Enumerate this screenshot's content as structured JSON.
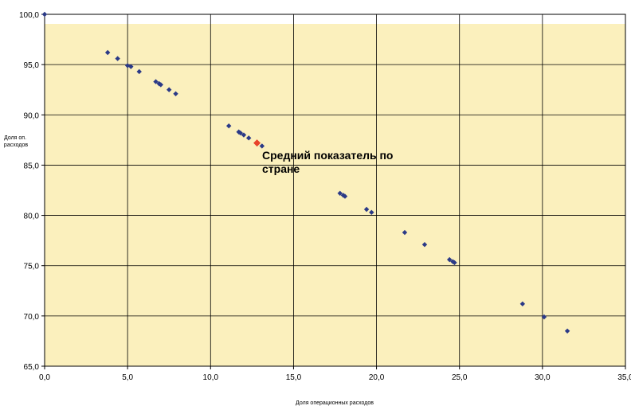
{
  "chart_data": {
    "type": "scatter",
    "title": "",
    "xlabel": "Доля операционных расходов",
    "ylabel": [
      "Доля оп.",
      "расходов"
    ],
    "xlim": [
      0,
      35
    ],
    "ylim": [
      65,
      100
    ],
    "x_ticks": [
      "0,0",
      "5,0",
      "10,0",
      "15,0",
      "20,0",
      "25,0",
      "30,0",
      "35,0"
    ],
    "y_ticks": [
      "65,0",
      "70,0",
      "75,0",
      "80,0",
      "85,0",
      "90,0",
      "95,0",
      "100,0"
    ],
    "x_tick_values": [
      0,
      5,
      10,
      15,
      20,
      25,
      30,
      35
    ],
    "y_tick_values": [
      65,
      70,
      75,
      80,
      85,
      90,
      95,
      100
    ],
    "grid": true,
    "colors": {
      "plot_background": "#fbf0bd",
      "points": "#2b3a87",
      "highlight": "#e8432a",
      "grid": "#000000"
    },
    "points": [
      {
        "x": 0.0,
        "y": 100.0
      },
      {
        "x": 3.8,
        "y": 96.2
      },
      {
        "x": 4.4,
        "y": 95.6
      },
      {
        "x": 5.0,
        "y": 94.9
      },
      {
        "x": 5.2,
        "y": 94.8
      },
      {
        "x": 5.7,
        "y": 94.3
      },
      {
        "x": 6.7,
        "y": 93.3
      },
      {
        "x": 6.9,
        "y": 93.1
      },
      {
        "x": 7.0,
        "y": 93.0
      },
      {
        "x": 7.5,
        "y": 92.5
      },
      {
        "x": 7.9,
        "y": 92.1
      },
      {
        "x": 11.1,
        "y": 88.9
      },
      {
        "x": 11.7,
        "y": 88.3
      },
      {
        "x": 11.8,
        "y": 88.2
      },
      {
        "x": 12.0,
        "y": 88.0
      },
      {
        "x": 12.3,
        "y": 87.7
      },
      {
        "x": 13.1,
        "y": 86.9
      },
      {
        "x": 17.8,
        "y": 82.2
      },
      {
        "x": 18.0,
        "y": 82.0
      },
      {
        "x": 18.1,
        "y": 81.9
      },
      {
        "x": 19.4,
        "y": 80.6
      },
      {
        "x": 19.7,
        "y": 80.3
      },
      {
        "x": 21.7,
        "y": 78.3
      },
      {
        "x": 22.9,
        "y": 77.1
      },
      {
        "x": 24.4,
        "y": 75.6
      },
      {
        "x": 24.6,
        "y": 75.4
      },
      {
        "x": 24.7,
        "y": 75.3
      },
      {
        "x": 28.8,
        "y": 71.2
      },
      {
        "x": 30.1,
        "y": 69.9
      },
      {
        "x": 31.5,
        "y": 68.5
      }
    ],
    "highlight_point": {
      "x": 12.8,
      "y": 87.2
    },
    "annotation": [
      "Средний показатель по",
      "стране"
    ]
  }
}
